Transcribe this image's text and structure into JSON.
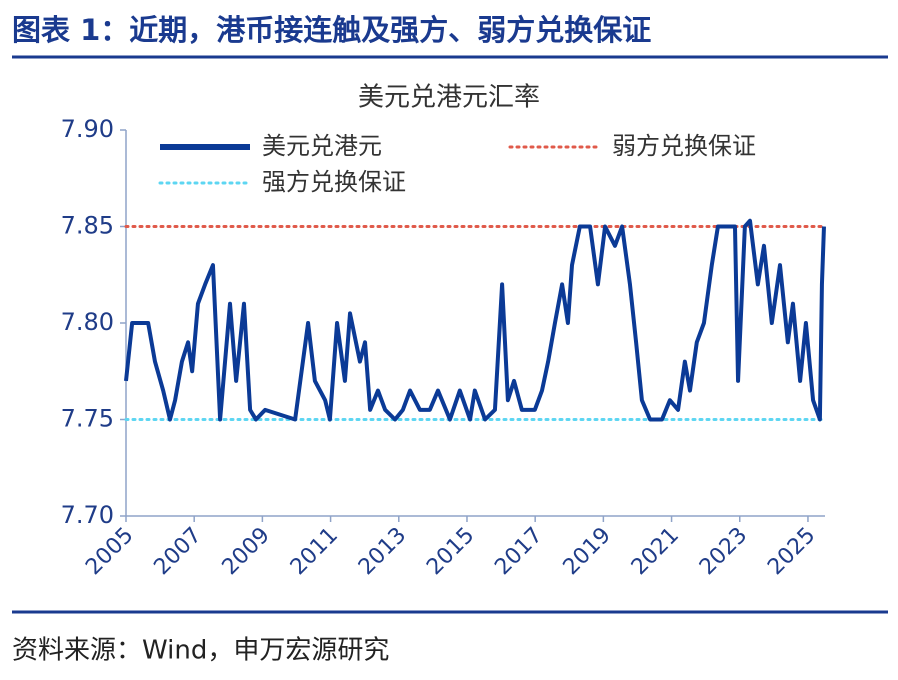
{
  "header": {
    "title": "图表 1：近期，港币接连触及强方、弱方兑换保证"
  },
  "chart_data": {
    "type": "line",
    "title": "美元兑港元汇率",
    "xlim": [
      2005,
      2025.5
    ],
    "xticks": [
      2005,
      2007,
      2009,
      2011,
      2013,
      2015,
      2017,
      2019,
      2021,
      2023,
      2025
    ],
    "ylim": [
      7.7,
      7.9
    ],
    "yticks": [
      {
        "value": 7.7,
        "label": "7.70"
      },
      7.75,
      {
        "value": 7.8,
        "label": "7.80"
      },
      7.85,
      {
        "value": 7.9,
        "label": "7.90"
      }
    ],
    "grid": false,
    "series": [
      {
        "name": "美元兑港元",
        "color": "#0b3a96",
        "style": "solid",
        "x": [
          2005.0,
          2005.18,
          2005.65,
          2005.85,
          2006.09,
          2006.29,
          2006.44,
          2006.64,
          2006.82,
          2006.94,
          2007.11,
          2007.32,
          2007.55,
          2007.76,
          2008.05,
          2008.23,
          2008.46,
          2008.64,
          2008.81,
          2009.08,
          2009.96,
          2010.34,
          2010.54,
          2010.84,
          2010.98,
          2011.19,
          2011.42,
          2011.57,
          2011.86,
          2012.01,
          2012.16,
          2012.39,
          2012.6,
          2012.89,
          2013.12,
          2013.33,
          2013.62,
          2013.91,
          2014.15,
          2014.5,
          2014.79,
          2015.09,
          2015.23,
          2015.53,
          2015.82,
          2016.03,
          2016.2,
          2016.38,
          2016.61,
          2016.99,
          2017.2,
          2017.38,
          2017.58,
          2017.79,
          2017.96,
          2018.08,
          2018.31,
          2018.61,
          2018.84,
          2019.05,
          2019.34,
          2019.55,
          2019.78,
          2019.96,
          2020.13,
          2020.37,
          2020.72,
          2020.95,
          2021.19,
          2021.39,
          2021.54,
          2021.74,
          2021.95,
          2022.18,
          2022.36,
          2022.86,
          2022.95,
          2023.15,
          2023.3,
          2023.53,
          2023.71,
          2023.94,
          2024.18,
          2024.41,
          2024.56,
          2024.77,
          2024.94,
          2025.15,
          2025.35,
          2025.41,
          2025.47
        ],
        "values": [
          7.77,
          7.8,
          7.8,
          7.78,
          7.765,
          7.75,
          7.76,
          7.78,
          7.79,
          7.775,
          7.81,
          7.82,
          7.83,
          7.75,
          7.81,
          7.77,
          7.81,
          7.755,
          7.75,
          7.755,
          7.75,
          7.8,
          7.77,
          7.76,
          7.75,
          7.8,
          7.77,
          7.805,
          7.78,
          7.79,
          7.755,
          7.765,
          7.755,
          7.75,
          7.755,
          7.765,
          7.755,
          7.755,
          7.765,
          7.75,
          7.765,
          7.75,
          7.765,
          7.75,
          7.755,
          7.82,
          7.76,
          7.77,
          7.755,
          7.755,
          7.765,
          7.78,
          7.8,
          7.82,
          7.8,
          7.83,
          7.85,
          7.85,
          7.82,
          7.85,
          7.84,
          7.85,
          7.82,
          7.79,
          7.76,
          7.75,
          7.75,
          7.76,
          7.755,
          7.78,
          7.765,
          7.79,
          7.8,
          7.83,
          7.85,
          7.85,
          7.77,
          7.85,
          7.853,
          7.82,
          7.84,
          7.8,
          7.83,
          7.79,
          7.81,
          7.77,
          7.8,
          7.76,
          7.75,
          7.82,
          7.85
        ]
      },
      {
        "name": "弱方兑换保证",
        "color": "#e05a4a",
        "style": "dotted",
        "x": [
          2005,
          2025.5
        ],
        "values": [
          7.85,
          7.85
        ]
      },
      {
        "name": "强方兑换保证",
        "color": "#5dd6f2",
        "style": "dotted",
        "x": [
          2005,
          2025.5
        ],
        "values": [
          7.75,
          7.75
        ]
      }
    ]
  },
  "footer": {
    "source": "资料来源：Wind，申万宏源研究"
  }
}
